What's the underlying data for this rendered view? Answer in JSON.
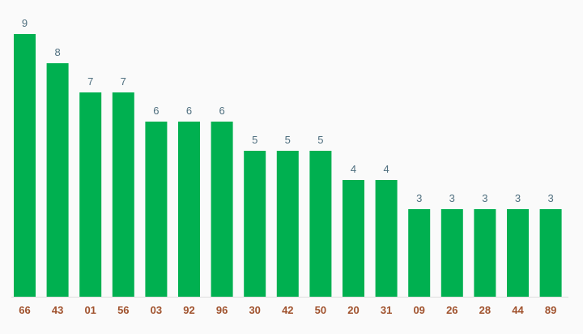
{
  "chart_data": {
    "type": "bar",
    "categories": [
      "66",
      "43",
      "01",
      "56",
      "03",
      "92",
      "96",
      "30",
      "42",
      "50",
      "20",
      "31",
      "09",
      "26",
      "28",
      "44",
      "89"
    ],
    "values": [
      9,
      8,
      7,
      7,
      6,
      6,
      6,
      5,
      5,
      5,
      4,
      4,
      3,
      3,
      3,
      3,
      3
    ],
    "title": "",
    "xlabel": "",
    "ylabel": "",
    "ylim": [
      0,
      9
    ],
    "grid": false,
    "legend": "none",
    "data_labels": true
  },
  "colors": {
    "bar": "#00b050",
    "value_label": "#4f6f7f",
    "category_label": "#a0522d",
    "axis": "#dddddd",
    "background": "#fafafa"
  }
}
